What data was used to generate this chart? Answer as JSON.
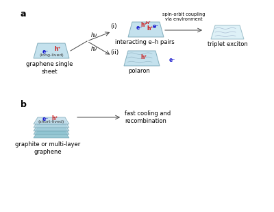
{
  "bg_color": "#ffffff",
  "label_a": "a",
  "label_b": "b",
  "graphene_sheet_label": "graphene single\nsheet",
  "graphite_label": "graphite or multi-layer\ngraphene",
  "long_lived_label": "(long-lived)",
  "short_lived_label": "(short-lived)",
  "interacting_label": "interacting e–h pairs",
  "polaron_label": "polaron",
  "triplet_exciton_label": "triplet exciton",
  "spin_orbit_label": "spin-orbit coupling\nvia environment",
  "fast_cooling_label": "fast cooling and\nrecombination",
  "label_i": "(i)",
  "label_ii": "(ii)",
  "sheet_fill": "#b0d8e8",
  "sheet_edge": "#6699aa",
  "triplet_fill": "#c8e8f2",
  "arrow_color": "#444444",
  "e_color": "#1111cc",
  "h_color": "#cc1111",
  "font_size_ab": 9,
  "font_size_text": 6,
  "font_size_eh": 5.5,
  "font_size_hv": 5.5,
  "font_size_label": 6.5
}
